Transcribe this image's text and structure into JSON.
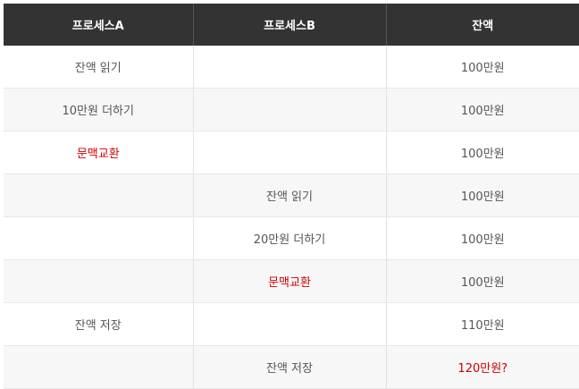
{
  "table": {
    "headers": [
      "프로세스A",
      "프로세스B",
      "잔액"
    ],
    "rows": [
      {
        "a": "잔액 읽기",
        "b": "",
        "balance": "100만원"
      },
      {
        "a": "10만원 더하기",
        "b": "",
        "balance": "100만원"
      },
      {
        "a": "문맥교환",
        "b": "",
        "balance": "100만원"
      },
      {
        "a": "",
        "b": "잔액 읽기",
        "balance": "100만원"
      },
      {
        "a": "",
        "b": "20만원 더하기",
        "balance": "100만원"
      },
      {
        "a": "",
        "b": "문맥교환",
        "balance": "100만원"
      },
      {
        "a": "잔액 저장",
        "b": "",
        "balance": "110만원"
      },
      {
        "a": "",
        "b": "잔액 저장",
        "balance": "120만원?"
      }
    ]
  },
  "colors": {
    "header_bg": "#333333",
    "header_text": "#ffffff",
    "highlight": "#cc0000",
    "text": "#555555",
    "row_alt": "#f7f7f7"
  }
}
